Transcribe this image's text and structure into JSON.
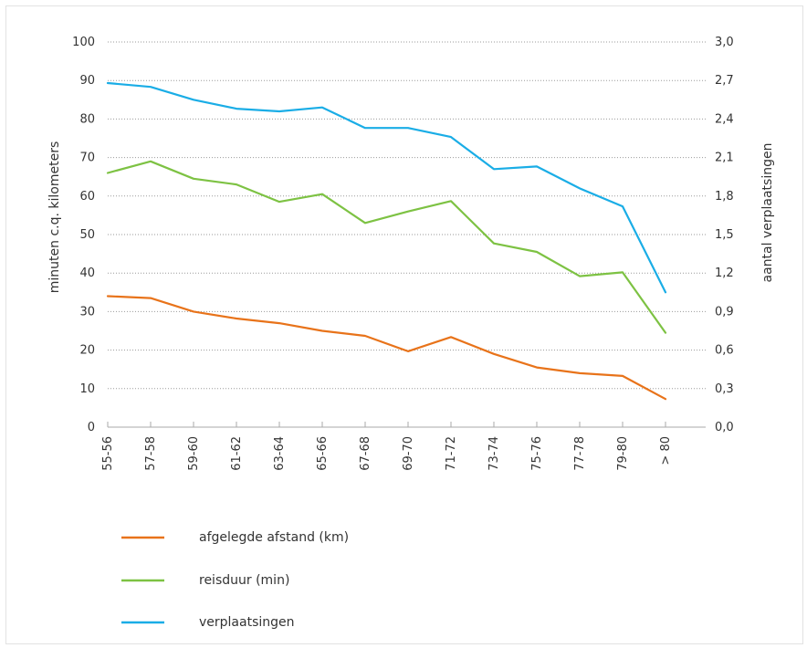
{
  "chart_data": {
    "type": "line",
    "categories": [
      "55-56",
      "57-58",
      "59-60",
      "61-62",
      "63-64",
      "65-66",
      "67-68",
      "69-70",
      "71-72",
      "73-74",
      "75-76",
      "77-78",
      "79-80",
      "> 80"
    ],
    "ylabel_left": "minuten c.q. kilometers",
    "ylabel_right": "aantal verplaatsingen",
    "ylim_left": [
      0,
      100
    ],
    "ylim_right": [
      0,
      3.0
    ],
    "yticks_left": [
      "0",
      "10",
      "20",
      "30",
      "40",
      "50",
      "60",
      "70",
      "80",
      "90",
      "100"
    ],
    "yticks_right": [
      "0,0",
      "0,3",
      "0,6",
      "0,9",
      "1,2",
      "1,5",
      "1,8",
      "2,1",
      "2,4",
      "2,7",
      "3,0"
    ],
    "grid": "horizontal dotted",
    "legend_position": "bottom-left",
    "series": [
      {
        "name": "afgelegde afstand (km)",
        "axis": "left",
        "color": "#E8731A",
        "values": [
          34,
          33.5,
          30,
          28.2,
          27,
          25,
          23.7,
          19.7,
          23.4,
          19,
          15.5,
          14,
          13.3,
          7.3
        ]
      },
      {
        "name": "reisduur (min)",
        "axis": "left",
        "color": "#7DC243",
        "values": [
          66,
          69,
          64.5,
          63,
          58.5,
          60.5,
          53,
          56,
          58.7,
          47.7,
          45.5,
          39.2,
          40.2,
          24.5
        ]
      },
      {
        "name": "verplaatsingen",
        "axis": "right",
        "color": "#1AADE6",
        "values": [
          2.68,
          2.65,
          2.55,
          2.48,
          2.46,
          2.49,
          2.33,
          2.33,
          2.26,
          2.01,
          2.03,
          1.86,
          1.72,
          1.05
        ]
      }
    ]
  }
}
